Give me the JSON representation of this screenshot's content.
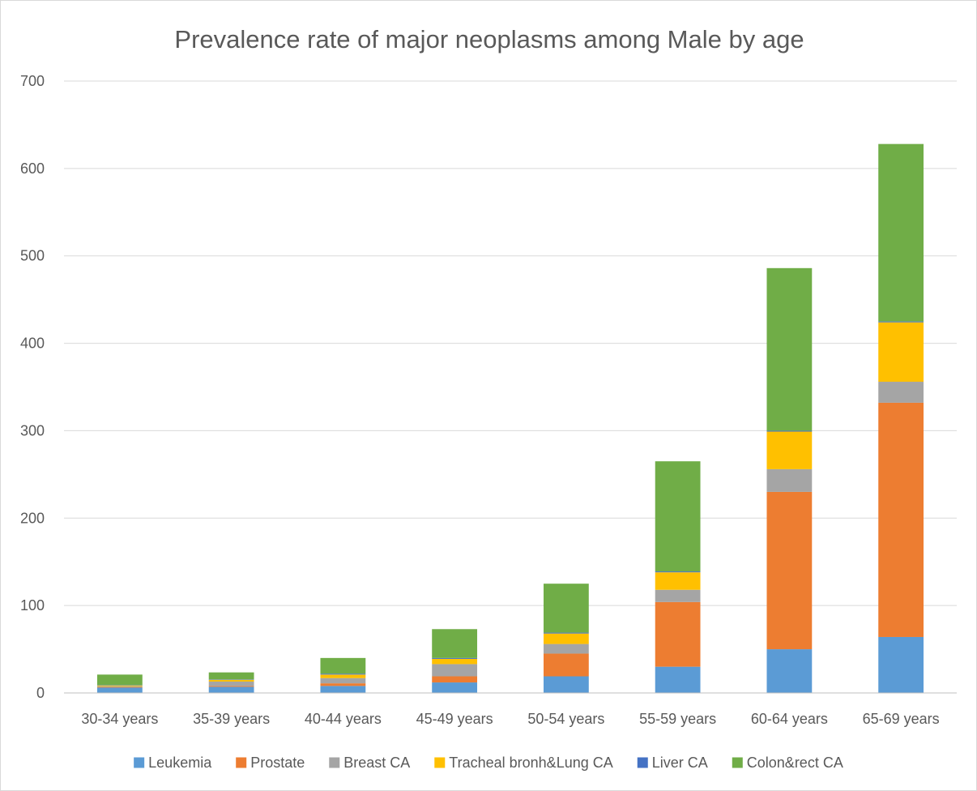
{
  "chart_data": {
    "type": "bar",
    "stacked": true,
    "title": "Prevalence rate of major neoplasms among Male by age",
    "xlabel": "",
    "ylabel": "",
    "ylim": [
      0,
      700
    ],
    "yticks": [
      0,
      100,
      200,
      300,
      400,
      500,
      600,
      700
    ],
    "grid": true,
    "legend_position": "bottom",
    "categories": [
      "30-34 years",
      "35-39 years",
      "40-44 years",
      "45-49 years",
      "50-54 years",
      "55-59 years",
      "60-64 years",
      "65-69 years"
    ],
    "series": [
      {
        "name": "Leukemia",
        "color": "#5B9BD5",
        "values": [
          6,
          7,
          8,
          12,
          19,
          30,
          50,
          64
        ]
      },
      {
        "name": "Prostate",
        "color": "#ED7D31",
        "values": [
          0.5,
          1,
          3,
          7,
          26,
          74,
          180,
          268
        ]
      },
      {
        "name": "Breast CA",
        "color": "#A5A5A5",
        "values": [
          1,
          5,
          6,
          14,
          11,
          14,
          26,
          24
        ]
      },
      {
        "name": "Tracheal bronh&Lung CA",
        "color": "#FFC000",
        "values": [
          1,
          2,
          4,
          6,
          12,
          20,
          43,
          68
        ]
      },
      {
        "name": "Liver CA",
        "color": "#4472C4",
        "values": [
          0.5,
          0.5,
          1,
          1,
          1,
          1,
          1,
          1
        ]
      },
      {
        "name": "Colon&rect CA",
        "color": "#70AD47",
        "values": [
          12,
          8,
          18,
          33,
          56,
          126,
          186,
          203
        ]
      }
    ]
  }
}
